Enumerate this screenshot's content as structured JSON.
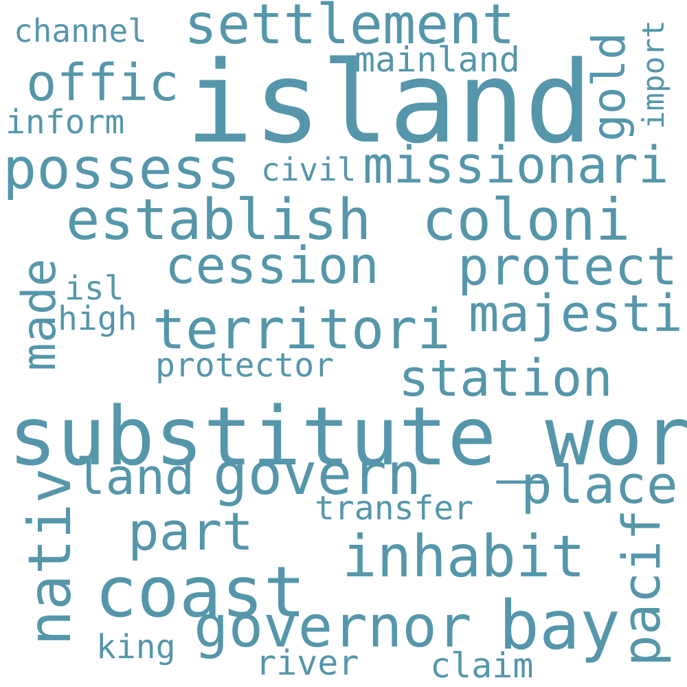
{
  "word_color": "#5596aa",
  "background": "#ffffff",
  "words": {
    "island": "island",
    "substitute_word": "substitute_word",
    "settlement": "settlement",
    "channel": "channel",
    "offic": "offic",
    "mainland": "mainland",
    "gold": "gold",
    "import": "import",
    "inform": "inform",
    "possess": "possess",
    "civil": "civil",
    "missionari": "missionari",
    "establish": "establish",
    "coloni": "coloni",
    "cession": "cession",
    "protect": "protect",
    "made": "made",
    "isl": "isl",
    "high": "high",
    "territori": "territori",
    "majesti": "majesti",
    "protector": "protector",
    "station": "station",
    "land": "land",
    "govern": "govern",
    "nativ": "nativ",
    "place": "place",
    "transfer": "transfer",
    "part": "part",
    "inhabit": "inhabit",
    "pacif": "pacif",
    "coast": "coast",
    "governor": "governor",
    "bay": "bay",
    "king": "king",
    "river": "river",
    "claim": "claim"
  }
}
